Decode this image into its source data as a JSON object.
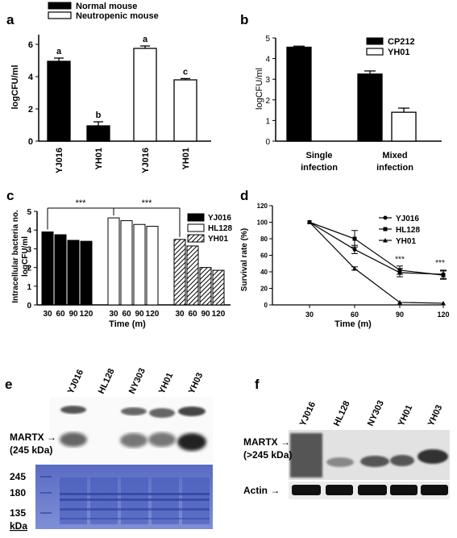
{
  "panel_a": {
    "letter": "a",
    "legend": [
      "Normal mouse",
      "Neutropenic mouse"
    ],
    "ylabel": "logCFU/ml",
    "yticks": [
      0,
      2,
      4,
      6
    ],
    "ylim": [
      0,
      6.6
    ],
    "bars": [
      {
        "label": "YJ016",
        "value": 4.95,
        "err": 0.2,
        "fill": "#000000",
        "letter": "a"
      },
      {
        "label": "YH01",
        "value": 0.95,
        "err": 0.25,
        "fill": "#000000",
        "letter": "b"
      },
      {
        "label": "YJ016",
        "value": 5.75,
        "err": 0.15,
        "fill": "#ffffff",
        "letter": "a"
      },
      {
        "label": "YH01",
        "value": 3.8,
        "err": 0.08,
        "fill": "#ffffff",
        "letter": "c"
      }
    ]
  },
  "panel_b": {
    "letter": "b",
    "legend": [
      "CP212",
      "YH01"
    ],
    "ylabel": "logCFU/ml",
    "yticks": [
      0,
      1,
      2,
      3,
      4,
      5
    ],
    "ylim": [
      0,
      5
    ],
    "groups": [
      "Single\ninfection",
      "Mixed\ninfection"
    ],
    "bars": [
      {
        "group": 0,
        "series": "CP212",
        "value": 4.55,
        "err": 0.05,
        "fill": "#000000"
      },
      {
        "group": 1,
        "series": "CP212",
        "value": 3.25,
        "err": 0.15,
        "fill": "#000000"
      },
      {
        "group": 1,
        "series": "YH01",
        "value": 1.4,
        "err": 0.2,
        "fill": "#ffffff"
      }
    ]
  },
  "panel_c": {
    "letter": "c",
    "legend": [
      "YJ016",
      "HL128",
      "YH01"
    ],
    "ylabel": "Intracellular bacteria no.\nlogCFU/ml",
    "xlabel": "Time (m)",
    "yticks": [
      0,
      1,
      2,
      3,
      4,
      5
    ],
    "ylim": [
      0,
      5
    ],
    "timepoints": [
      "30",
      "60",
      "90",
      "120"
    ],
    "significance": [
      "***",
      "***"
    ],
    "series": [
      {
        "name": "YJ016",
        "values": [
          3.9,
          3.75,
          3.45,
          3.4
        ],
        "pattern": "solid"
      },
      {
        "name": "HL128",
        "values": [
          4.65,
          4.5,
          4.3,
          4.2
        ],
        "pattern": "open"
      },
      {
        "name": "YH01",
        "values": [
          3.5,
          3.15,
          2.0,
          1.85
        ],
        "pattern": "hatch"
      }
    ]
  },
  "panel_d": {
    "letter": "d",
    "ylabel": "Survival rate (%)",
    "xlabel": "Time (m)",
    "yticks": [
      0,
      20,
      40,
      60,
      80,
      100,
      120
    ],
    "ylim": [
      0,
      120
    ],
    "x": [
      "30",
      "60",
      "90",
      "120"
    ],
    "significance": [
      "***",
      "***"
    ],
    "series": [
      {
        "name": "YJ016",
        "marker": "circle",
        "values": [
          100,
          67,
          39,
          37
        ]
      },
      {
        "name": "HL128",
        "marker": "square",
        "values": [
          100,
          80,
          42,
          36
        ]
      },
      {
        "name": "YH01",
        "marker": "triangle",
        "values": [
          100,
          44,
          3,
          2
        ]
      }
    ]
  },
  "panel_e": {
    "letter": "e",
    "strains": [
      "YJ016",
      "HL128",
      "NY303",
      "YH01",
      "YH03"
    ],
    "martx_label": "MARTX →",
    "martx_kda": "(245 kDa)",
    "markers": [
      "245",
      "180",
      "135",
      "kDa"
    ]
  },
  "panel_f": {
    "letter": "f",
    "strains": [
      "YJ016",
      "HL128",
      "NY303",
      "YH01",
      "YH03"
    ],
    "martx_label": "MARTX →",
    "martx_kda": "(>245 kDa)",
    "actin_label": "Actin →"
  }
}
